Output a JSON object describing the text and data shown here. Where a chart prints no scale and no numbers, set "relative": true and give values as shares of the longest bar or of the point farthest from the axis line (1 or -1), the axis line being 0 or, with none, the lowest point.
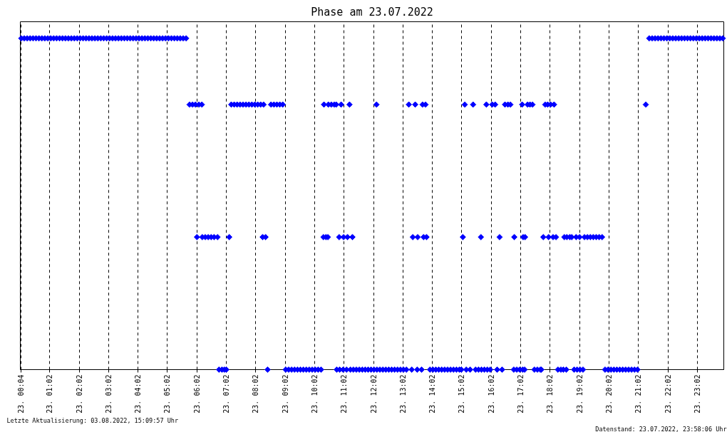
{
  "chart_data": {
    "type": "scatter",
    "title": "Phase am 23.07.2022",
    "marker": "diamond",
    "relative": true,
    "color": "#0000ff",
    "x": [
      "2022-07-23T00:04",
      "2022-07-23T00:10",
      "2022-07-23T00:16",
      "2022-07-23T00:22",
      "2022-07-23T00:28",
      "2022-07-23T00:34",
      "2022-07-23T00:40",
      "2022-07-23T00:46",
      "2022-07-23T00:52",
      "2022-07-23T00:58",
      "2022-07-23T01:04",
      "2022-07-23T01:10",
      "2022-07-23T01:16",
      "2022-07-23T01:22",
      "2022-07-23T01:28",
      "2022-07-23T01:34",
      "2022-07-23T01:40",
      "2022-07-23T01:46",
      "2022-07-23T01:52",
      "2022-07-23T01:58",
      "2022-07-23T02:04",
      "2022-07-23T02:10",
      "2022-07-23T02:16",
      "2022-07-23T02:22",
      "2022-07-23T02:28",
      "2022-07-23T02:34",
      "2022-07-23T02:40",
      "2022-07-23T02:46",
      "2022-07-23T02:52",
      "2022-07-23T02:58",
      "2022-07-23T03:04",
      "2022-07-23T03:10",
      "2022-07-23T03:16",
      "2022-07-23T03:22",
      "2022-07-23T03:28",
      "2022-07-23T03:34",
      "2022-07-23T03:40",
      "2022-07-23T03:46",
      "2022-07-23T03:52",
      "2022-07-23T03:58",
      "2022-07-23T04:04",
      "2022-07-23T04:10",
      "2022-07-23T04:16",
      "2022-07-23T04:22",
      "2022-07-23T04:28",
      "2022-07-23T04:34",
      "2022-07-23T04:40",
      "2022-07-23T04:46",
      "2022-07-23T04:52",
      "2022-07-23T04:58",
      "2022-07-23T05:04",
      "2022-07-23T05:10",
      "2022-07-23T05:16",
      "2022-07-23T05:22",
      "2022-07-23T05:28",
      "2022-07-23T05:34",
      "2022-07-23T05:40",
      "2022-07-23T21:24",
      "2022-07-23T21:30",
      "2022-07-23T21:36",
      "2022-07-23T21:42",
      "2022-07-23T21:48",
      "2022-07-23T21:54",
      "2022-07-23T22:00",
      "2022-07-23T22:06",
      "2022-07-23T22:12",
      "2022-07-23T22:18",
      "2022-07-23T22:24",
      "2022-07-23T22:30",
      "2022-07-23T22:36",
      "2022-07-23T22:42",
      "2022-07-23T22:48",
      "2022-07-23T22:54",
      "2022-07-23T23:00",
      "2022-07-23T23:06",
      "2022-07-23T23:12",
      "2022-07-23T23:18",
      "2022-07-23T23:24",
      "2022-07-23T23:30",
      "2022-07-23T23:36",
      "2022-07-23T23:42",
      "2022-07-23T23:48",
      "2022-07-23T23:54",
      "2022-07-23T05:47",
      "2022-07-23T05:53",
      "2022-07-23T05:59",
      "2022-07-23T06:06",
      "2022-07-23T06:12",
      "2022-07-23T07:12",
      "2022-07-23T07:18",
      "2022-07-23T07:24",
      "2022-07-23T07:30",
      "2022-07-23T07:36",
      "2022-07-23T07:42",
      "2022-07-23T07:48",
      "2022-07-23T07:54",
      "2022-07-23T08:00",
      "2022-07-23T08:06",
      "2022-07-23T08:12",
      "2022-07-23T08:18",
      "2022-07-23T08:33",
      "2022-07-23T08:39",
      "2022-07-23T08:45",
      "2022-07-23T08:51",
      "2022-07-23T08:57",
      "2022-07-23T10:21",
      "2022-07-23T10:30",
      "2022-07-23T10:36",
      "2022-07-23T10:42",
      "2022-07-23T10:46",
      "2022-07-23T10:56",
      "2022-07-23T11:13",
      "2022-07-23T12:08",
      "2022-07-23T13:14",
      "2022-07-23T13:27",
      "2022-07-23T13:42",
      "2022-07-23T13:48",
      "2022-07-23T15:08",
      "2022-07-23T15:25",
      "2022-07-23T15:52",
      "2022-07-23T16:04",
      "2022-07-23T16:10",
      "2022-07-23T16:30",
      "2022-07-23T16:36",
      "2022-07-23T16:41",
      "2022-07-23T17:05",
      "2022-07-23T17:16",
      "2022-07-23T17:21",
      "2022-07-23T17:26",
      "2022-07-23T17:52",
      "2022-07-23T17:57",
      "2022-07-23T18:03",
      "2022-07-23T18:10",
      "2022-07-23T21:17",
      "2022-07-23T06:02",
      "2022-07-23T06:13",
      "2022-07-23T06:19",
      "2022-07-23T06:25",
      "2022-07-23T06:31",
      "2022-07-23T06:37",
      "2022-07-23T06:44",
      "2022-07-23T07:08",
      "2022-07-23T08:16",
      "2022-07-23T08:22",
      "2022-07-23T10:20",
      "2022-07-23T10:25",
      "2022-07-23T10:29",
      "2022-07-23T10:52",
      "2022-07-23T11:01",
      "2022-07-23T11:09",
      "2022-07-23T11:19",
      "2022-07-23T13:22",
      "2022-07-23T13:32",
      "2022-07-23T13:44",
      "2022-07-23T13:50",
      "2022-07-23T15:04",
      "2022-07-23T15:41",
      "2022-07-23T16:19",
      "2022-07-23T16:49",
      "2022-07-23T17:07",
      "2022-07-23T17:11",
      "2022-07-23T17:48",
      "2022-07-23T17:59",
      "2022-07-23T18:08",
      "2022-07-23T18:14",
      "2022-07-23T18:31",
      "2022-07-23T18:36",
      "2022-07-23T18:42",
      "2022-07-23T18:46",
      "2022-07-23T18:55",
      "2022-07-23T19:02",
      "2022-07-23T19:12",
      "2022-07-23T19:18",
      "2022-07-23T19:24",
      "2022-07-23T19:30",
      "2022-07-23T19:36",
      "2022-07-23T19:42",
      "2022-07-23T19:48",
      "2022-07-23T06:47",
      "2022-07-23T06:53",
      "2022-07-23T06:58",
      "2022-07-23T07:02",
      "2022-07-23T08:26",
      "2022-07-23T09:03",
      "2022-07-23T09:09",
      "2022-07-23T09:15",
      "2022-07-23T09:21",
      "2022-07-23T09:27",
      "2022-07-23T09:33",
      "2022-07-23T09:39",
      "2022-07-23T09:45",
      "2022-07-23T09:51",
      "2022-07-23T09:57",
      "2022-07-23T10:03",
      "2022-07-23T10:09",
      "2022-07-23T10:15",
      "2022-07-23T10:47",
      "2022-07-23T10:53",
      "2022-07-23T11:00",
      "2022-07-23T11:07",
      "2022-07-23T11:15",
      "2022-07-23T11:21",
      "2022-07-23T11:27",
      "2022-07-23T11:33",
      "2022-07-23T11:39",
      "2022-07-23T11:45",
      "2022-07-23T11:51",
      "2022-07-23T11:57",
      "2022-07-23T12:03",
      "2022-07-23T12:09",
      "2022-07-23T12:15",
      "2022-07-23T12:21",
      "2022-07-23T12:27",
      "2022-07-23T12:33",
      "2022-07-23T12:39",
      "2022-07-23T12:45",
      "2022-07-23T12:51",
      "2022-07-23T12:57",
      "2022-07-23T13:03",
      "2022-07-23T13:09",
      "2022-07-23T13:20",
      "2022-07-23T13:31",
      "2022-07-23T13:40",
      "2022-07-23T13:57",
      "2022-07-23T14:03",
      "2022-07-23T14:09",
      "2022-07-23T14:15",
      "2022-07-23T14:21",
      "2022-07-23T14:27",
      "2022-07-23T14:33",
      "2022-07-23T14:39",
      "2022-07-23T14:45",
      "2022-07-23T14:51",
      "2022-07-23T14:57",
      "2022-07-23T15:01",
      "2022-07-23T15:11",
      "2022-07-23T15:19",
      "2022-07-23T15:30",
      "2022-07-23T15:36",
      "2022-07-23T15:42",
      "2022-07-23T15:48",
      "2022-07-23T15:54",
      "2022-07-23T16:00",
      "2022-07-23T16:14",
      "2022-07-23T16:24",
      "2022-07-23T16:48",
      "2022-07-23T16:54",
      "2022-07-23T17:00",
      "2022-07-23T17:06",
      "2022-07-23T17:10",
      "2022-07-23T17:30",
      "2022-07-23T17:36",
      "2022-07-23T17:42",
      "2022-07-23T17:44",
      "2022-07-23T18:18",
      "2022-07-23T18:24",
      "2022-07-23T18:29",
      "2022-07-23T18:35",
      "2022-07-23T18:51",
      "2022-07-23T18:57",
      "2022-07-23T19:03",
      "2022-07-23T19:09",
      "2022-07-23T19:54",
      "2022-07-23T20:00",
      "2022-07-23T20:06",
      "2022-07-23T20:12",
      "2022-07-23T20:18",
      "2022-07-23T20:24",
      "2022-07-23T20:30",
      "2022-07-23T20:36",
      "2022-07-23T20:42",
      "2022-07-23T20:48",
      "2022-07-23T20:54",
      "2022-07-23T21:00"
    ],
    "values": [
      1,
      1,
      1,
      1,
      1,
      1,
      1,
      1,
      1,
      1,
      1,
      1,
      1,
      1,
      1,
      1,
      1,
      1,
      1,
      1,
      1,
      1,
      1,
      1,
      1,
      1,
      1,
      1,
      1,
      1,
      1,
      1,
      1,
      1,
      1,
      1,
      1,
      1,
      1,
      1,
      1,
      1,
      1,
      1,
      1,
      1,
      1,
      1,
      1,
      1,
      1,
      1,
      1,
      1,
      1,
      1,
      1,
      1,
      1,
      1,
      1,
      1,
      1,
      1,
      1,
      1,
      1,
      1,
      1,
      1,
      1,
      1,
      1,
      1,
      1,
      1,
      1,
      1,
      1,
      1,
      1,
      1,
      1,
      0.8,
      0.8,
      0.8,
      0.8,
      0.8,
      0.8,
      0.8,
      0.8,
      0.8,
      0.8,
      0.8,
      0.8,
      0.8,
      0.8,
      0.8,
      0.8,
      0.8,
      0.8,
      0.8,
      0.8,
      0.8,
      0.8,
      0.8,
      0.8,
      0.8,
      0.8,
      0.8,
      0.8,
      0.8,
      0.8,
      0.8,
      0.8,
      0.8,
      0.8,
      0.8,
      0.8,
      0.8,
      0.8,
      0.8,
      0.8,
      0.8,
      0.8,
      0.8,
      0.8,
      0.8,
      0.8,
      0.8,
      0.8,
      0.8,
      0.8,
      0.8,
      0.4,
      0.4,
      0.4,
      0.4,
      0.4,
      0.4,
      0.4,
      0.4,
      0.4,
      0.4,
      0.4,
      0.4,
      0.4,
      0.4,
      0.4,
      0.4,
      0.4,
      0.4,
      0.4,
      0.4,
      0.4,
      0.4,
      0.4,
      0.4,
      0.4,
      0.4,
      0.4,
      0.4,
      0.4,
      0.4,
      0.4,
      0.4,
      0.4,
      0.4,
      0.4,
      0.4,
      0.4,
      0.4,
      0.4,
      0.4,
      0.4,
      0.4,
      0.4,
      0.4,
      0,
      0,
      0,
      0,
      0,
      0,
      0,
      0,
      0,
      0,
      0,
      0,
      0,
      0,
      0,
      0,
      0,
      0,
      0,
      0,
      0,
      0,
      0,
      0,
      0,
      0,
      0,
      0,
      0,
      0,
      0,
      0,
      0,
      0,
      0,
      0,
      0,
      0,
      0,
      0,
      0,
      0,
      0,
      0,
      0,
      0,
      0,
      0,
      0,
      0,
      0,
      0,
      0,
      0,
      0,
      0,
      0,
      0,
      0,
      0,
      0,
      0,
      0,
      0,
      0,
      0,
      0,
      0,
      0,
      0,
      0,
      0,
      0,
      0,
      0,
      0,
      0,
      0,
      0,
      0,
      0,
      0,
      0,
      0,
      0,
      0,
      0,
      0,
      0,
      0,
      0,
      0,
      0,
      0,
      0,
      0
    ],
    "xlim": [
      "2022-07-23T00:02",
      "2022-07-23T23:56"
    ],
    "xticks": [
      {
        "value": "2022-07-23T00:04",
        "label": "23. 00:04"
      },
      {
        "value": "2022-07-23T01:02",
        "label": "23. 01:02"
      },
      {
        "value": "2022-07-23T02:02",
        "label": "23. 02:02"
      },
      {
        "value": "2022-07-23T03:02",
        "label": "23. 03:02"
      },
      {
        "value": "2022-07-23T04:02",
        "label": "23. 04:02"
      },
      {
        "value": "2022-07-23T05:02",
        "label": "23. 05:02"
      },
      {
        "value": "2022-07-23T06:02",
        "label": "23. 06:02"
      },
      {
        "value": "2022-07-23T07:02",
        "label": "23. 07:02"
      },
      {
        "value": "2022-07-23T08:02",
        "label": "23. 08:02"
      },
      {
        "value": "2022-07-23T09:02",
        "label": "23. 09:02"
      },
      {
        "value": "2022-07-23T10:02",
        "label": "23. 10:02"
      },
      {
        "value": "2022-07-23T11:02",
        "label": "23. 11:02"
      },
      {
        "value": "2022-07-23T12:02",
        "label": "23. 12:02"
      },
      {
        "value": "2022-07-23T13:02",
        "label": "23. 13:02"
      },
      {
        "value": "2022-07-23T14:02",
        "label": "23. 14:02"
      },
      {
        "value": "2022-07-23T15:02",
        "label": "23. 15:02"
      },
      {
        "value": "2022-07-23T16:02",
        "label": "23. 16:02"
      },
      {
        "value": "2022-07-23T17:02",
        "label": "23. 17:02"
      },
      {
        "value": "2022-07-23T18:02",
        "label": "23. 18:02"
      },
      {
        "value": "2022-07-23T19:02",
        "label": "23. 19:02"
      },
      {
        "value": "2022-07-23T20:02",
        "label": "23. 20:02"
      },
      {
        "value": "2022-07-23T21:02",
        "label": "23. 21:02"
      },
      {
        "value": "2022-07-23T22:02",
        "label": "23. 22:02"
      },
      {
        "value": "2022-07-23T23:02",
        "label": "23. 23:02"
      }
    ],
    "grid": "x",
    "annotations": [
      "Letzte Aktualisierung: 03.08.2022, 15:09:57 Uhr",
      "Datenstand: 23.07.2022, 23:58:06 Uhr"
    ]
  }
}
